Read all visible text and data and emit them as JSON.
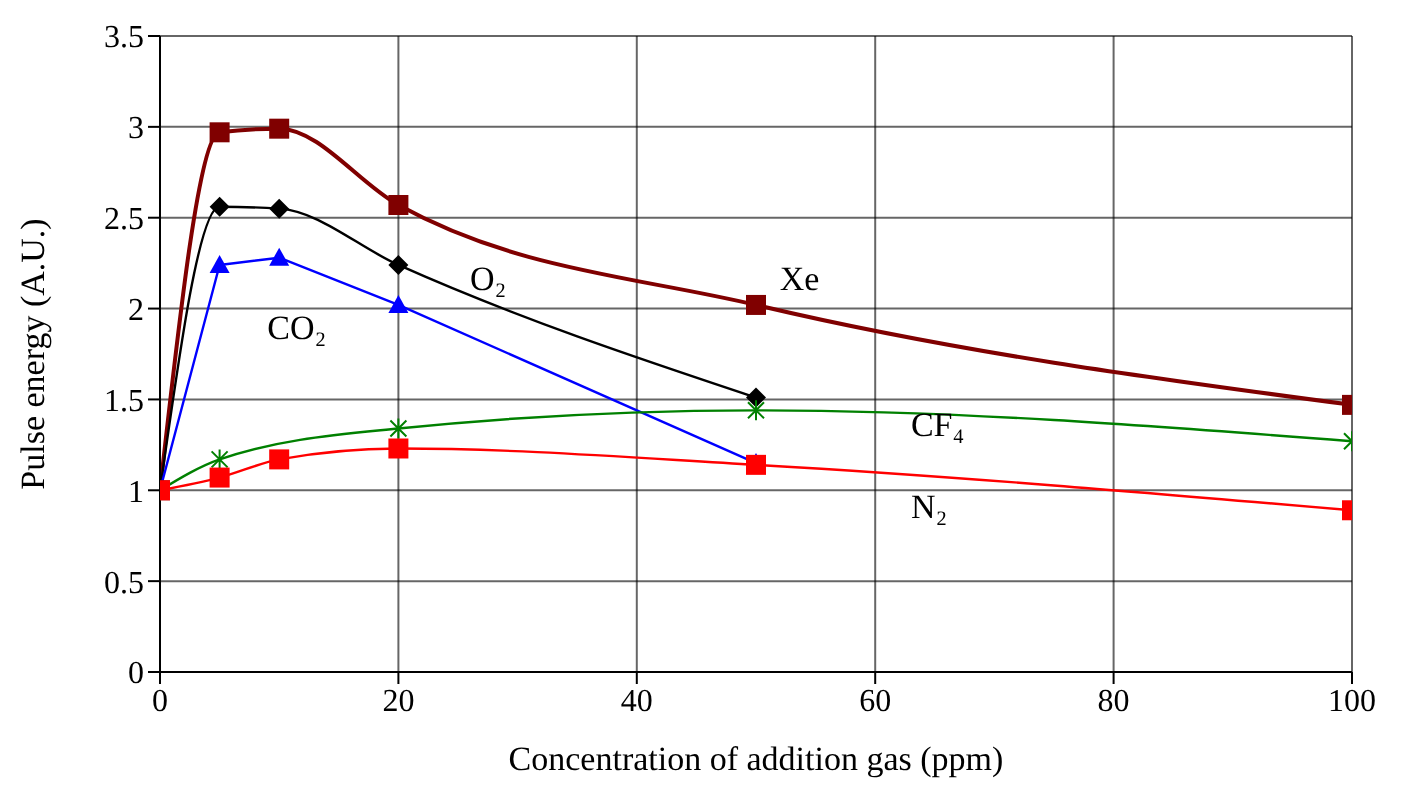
{
  "chart_data": {
    "type": "line",
    "xlabel": "Concentration of addition gas (ppm)",
    "ylabel": "Pulse energy (A.U.)",
    "xlim": [
      0,
      100
    ],
    "xticks": [
      0,
      20,
      40,
      60,
      80,
      100
    ],
    "ylim": [
      0,
      3.5
    ],
    "yticks": [
      0,
      0.5,
      1,
      1.5,
      2,
      2.5,
      3,
      3.5
    ],
    "grid": true,
    "series": [
      {
        "name": "Xe",
        "color": "#800000",
        "marker": "square",
        "x": [
          0,
          5,
          10,
          20,
          50,
          100
        ],
        "values": [
          1,
          2.97,
          2.99,
          2.57,
          2.02,
          1.47
        ]
      },
      {
        "name": "O₂",
        "color": "#000000",
        "marker": "diamond",
        "x": [
          0,
          5,
          10,
          20,
          50
        ],
        "values": [
          1,
          2.56,
          2.55,
          2.24,
          1.51
        ]
      },
      {
        "name": "CO₂",
        "color": "#0000ff",
        "marker": "triangle",
        "x": [
          0,
          5,
          10,
          20,
          50
        ],
        "values": [
          1,
          2.24,
          2.28,
          2.02,
          1.15
        ]
      },
      {
        "name": "CF₄",
        "color": "#008000",
        "marker": "cross",
        "x": [
          0,
          5,
          20,
          50,
          100
        ],
        "values": [
          1,
          1.17,
          1.34,
          1.44,
          1.27
        ]
      },
      {
        "name": "N₂",
        "color": "#ff0000",
        "marker": "square",
        "x": [
          0,
          5,
          10,
          20,
          50,
          100
        ],
        "values": [
          1,
          1.07,
          1.17,
          1.23,
          1.14,
          0.89
        ]
      }
    ]
  }
}
